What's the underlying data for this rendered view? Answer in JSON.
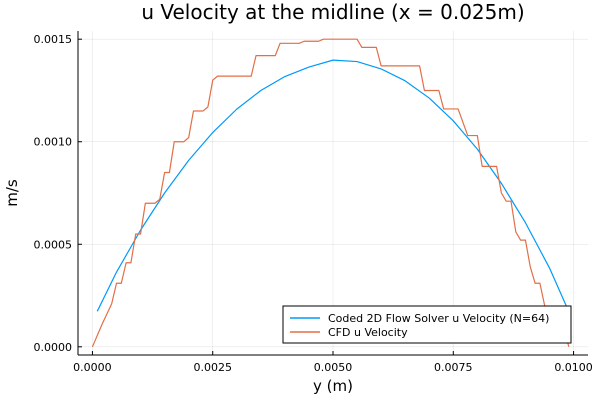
{
  "chart_data": {
    "type": "line",
    "title": "u Velocity at the midline (x = 0.025m)",
    "xlabel": "y (m)",
    "ylabel": "m/s",
    "xlim": [
      -0.0003,
      0.0103
    ],
    "ylim": [
      -4e-05,
      0.00154
    ],
    "xticks": [
      0.0,
      0.0025,
      0.005,
      0.0075,
      0.01
    ],
    "xtick_labels": [
      "0.0000",
      "0.0025",
      "0.0050",
      "0.0075",
      "0.0100"
    ],
    "yticks": [
      0.0,
      0.0005,
      0.001,
      0.0015
    ],
    "ytick_labels": [
      "0.0000",
      "0.0005",
      "0.0010",
      "0.0015"
    ],
    "grid": true,
    "legend_position": "bottom-right",
    "series": [
      {
        "name": "Coded 2D Flow Solver u Velocity (N=64)",
        "color": "#009af9",
        "x": [
          0.0001,
          0.0005,
          0.001,
          0.0015,
          0.002,
          0.0025,
          0.003,
          0.0035,
          0.004,
          0.0045,
          0.005,
          0.0055,
          0.006,
          0.0065,
          0.007,
          0.0075,
          0.008,
          0.0085,
          0.009,
          0.0095,
          0.0099
        ],
        "y": [
          0.000173,
          0.000364,
          0.000569,
          0.00075,
          0.000909,
          0.001045,
          0.001159,
          0.00125,
          0.001318,
          0.001364,
          0.001398,
          0.001391,
          0.001355,
          0.001297,
          0.001213,
          0.001102,
          0.000964,
          0.000797,
          0.000605,
          0.000384,
          0.000172
        ]
      },
      {
        "name": "CFD u Velocity",
        "color": "#e26f46",
        "x": [
          0.0,
          0.0002,
          0.0004,
          0.0005,
          0.0006,
          0.0007,
          0.0008,
          0.0009,
          0.001,
          0.0011,
          0.0012,
          0.0013,
          0.0014,
          0.0015,
          0.0016,
          0.0017,
          0.0018,
          0.0019,
          0.002,
          0.0021,
          0.0023,
          0.0024,
          0.0025,
          0.0026,
          0.0028,
          0.0029,
          0.003,
          0.0033,
          0.0034,
          0.0035,
          0.0036,
          0.0038,
          0.0039,
          0.004,
          0.0043,
          0.0044,
          0.0045,
          0.0047,
          0.0048,
          0.0049,
          0.005,
          0.0052,
          0.0053,
          0.0055,
          0.0056,
          0.0057,
          0.0059,
          0.006,
          0.0062,
          0.0063,
          0.0068,
          0.0069,
          0.007,
          0.0072,
          0.0073,
          0.0075,
          0.0076,
          0.0078,
          0.0079,
          0.008,
          0.0081,
          0.0083,
          0.0084,
          0.0085,
          0.0086,
          0.0087,
          0.0088,
          0.0089,
          0.009,
          0.0091,
          0.0092,
          0.0093,
          0.0094,
          0.0095,
          0.0096,
          0.0098,
          0.0099
        ],
        "y": [
          0.0,
          0.00011,
          0.00021,
          0.00031,
          0.00031,
          0.00041,
          0.00041,
          0.00055,
          0.00055,
          0.0007,
          0.0007,
          0.0007,
          0.00072,
          0.00085,
          0.00085,
          0.001,
          0.001,
          0.001,
          0.00102,
          0.00115,
          0.00115,
          0.00117,
          0.0013,
          0.00132,
          0.00132,
          0.00132,
          0.00132,
          0.00132,
          0.00142,
          0.00142,
          0.00142,
          0.00142,
          0.00148,
          0.00148,
          0.00148,
          0.00149,
          0.00149,
          0.00149,
          0.0015,
          0.0015,
          0.0015,
          0.0015,
          0.0015,
          0.0015,
          0.00146,
          0.00146,
          0.00146,
          0.00137,
          0.00137,
          0.00137,
          0.00137,
          0.00125,
          0.00125,
          0.00125,
          0.00116,
          0.00116,
          0.00116,
          0.00103,
          0.00103,
          0.00103,
          0.00088,
          0.00088,
          0.00088,
          0.00075,
          0.00071,
          0.00071,
          0.00056,
          0.00052,
          0.00052,
          0.00039,
          0.00031,
          0.00031,
          0.0002,
          0.00015,
          0.00013,
          0.0001,
          0.0
        ]
      }
    ]
  }
}
